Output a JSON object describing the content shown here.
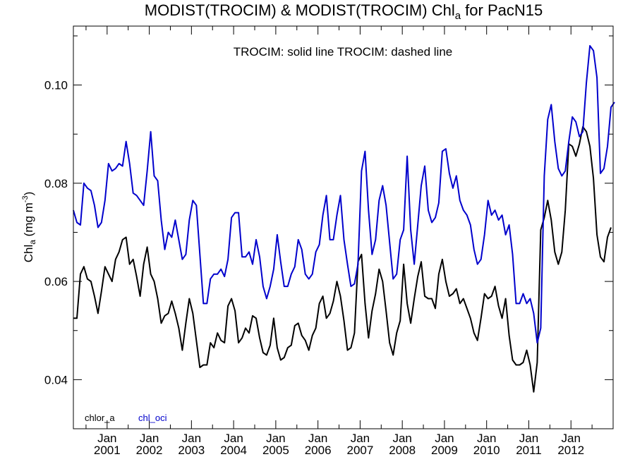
{
  "chart_data": {
    "type": "line",
    "title_prefix": "MODIST(TROCIM) & MODIST(TROCIM)  Chl",
    "title_sub": "a",
    "title_suffix": " for PacN15",
    "annotation": "TROCIM: solid line   TROCIM: dashed line",
    "ylabel_prefix": "Chl",
    "ylabel_sub": "a",
    "ylabel_unit_prefix": " (mg m",
    "ylabel_unit_sup": "-3",
    "ylabel_unit_suffix": ")",
    "ylim": [
      0.03,
      0.112
    ],
    "yticks": [
      0.04,
      0.06,
      0.08,
      0.1
    ],
    "ytick_labels": [
      "0.04",
      "0.06",
      "0.08",
      "0.10"
    ],
    "xlim": [
      2000.2,
      2013.0
    ],
    "xticks": [
      2001.0,
      2002.0,
      2003.0,
      2004.0,
      2005.0,
      2006.0,
      2007.0,
      2008.0,
      2009.0,
      2010.0,
      2011.0,
      2012.0
    ],
    "xtick_month_label": "Jan",
    "xtick_year_labels": [
      "2001",
      "2002",
      "2003",
      "2004",
      "2005",
      "2006",
      "2007",
      "2008",
      "2009",
      "2010",
      "2011",
      "2012"
    ],
    "legend_position": "bottom-left",
    "series": [
      {
        "name": "chlor_a",
        "color": "#000000",
        "x_start": 2000.2,
        "x_step": 0.08333,
        "values": [
          0.0525,
          0.0525,
          0.0615,
          0.063,
          0.0605,
          0.06,
          0.057,
          0.0535,
          0.058,
          0.063,
          0.0615,
          0.06,
          0.0645,
          0.066,
          0.0685,
          0.069,
          0.0635,
          0.0645,
          0.061,
          0.057,
          0.0635,
          0.067,
          0.0615,
          0.06,
          0.0565,
          0.0515,
          0.053,
          0.0535,
          0.056,
          0.0535,
          0.0505,
          0.046,
          0.0515,
          0.0565,
          0.0535,
          0.048,
          0.0425,
          0.043,
          0.043,
          0.0475,
          0.0465,
          0.0495,
          0.048,
          0.0475,
          0.055,
          0.0565,
          0.054,
          0.0475,
          0.0485,
          0.0505,
          0.0495,
          0.053,
          0.0525,
          0.0485,
          0.0455,
          0.045,
          0.047,
          0.0525,
          0.0465,
          0.044,
          0.0445,
          0.0465,
          0.047,
          0.051,
          0.0515,
          0.049,
          0.048,
          0.046,
          0.049,
          0.0505,
          0.0555,
          0.057,
          0.0525,
          0.0535,
          0.056,
          0.06,
          0.057,
          0.052,
          0.046,
          0.0465,
          0.0495,
          0.064,
          0.0655,
          0.0555,
          0.0485,
          0.054,
          0.0575,
          0.0625,
          0.06,
          0.054,
          0.0475,
          0.045,
          0.0495,
          0.052,
          0.0635,
          0.0555,
          0.0515,
          0.0565,
          0.061,
          0.064,
          0.057,
          0.0565,
          0.0565,
          0.0545,
          0.0615,
          0.0645,
          0.06,
          0.057,
          0.0575,
          0.0585,
          0.0555,
          0.0565,
          0.0545,
          0.0525,
          0.0495,
          0.048,
          0.0525,
          0.0575,
          0.0565,
          0.057,
          0.059,
          0.055,
          0.0525,
          0.0565,
          0.049,
          0.044,
          0.043,
          0.043,
          0.0435,
          0.046,
          0.043,
          0.0375,
          0.0435,
          0.0705,
          0.073,
          0.0765,
          0.0725,
          0.066,
          0.0635,
          0.066,
          0.0745,
          0.088,
          0.0875,
          0.0855,
          0.088,
          0.0915,
          0.0905,
          0.0875,
          0.081,
          0.0695,
          0.065,
          0.064,
          0.069,
          0.071
        ]
      },
      {
        "name": "chl_oci",
        "color": "#0000cc",
        "x_start": 2000.2,
        "x_step": 0.08333,
        "values": [
          0.0745,
          0.072,
          0.0715,
          0.08,
          0.079,
          0.0785,
          0.0755,
          0.071,
          0.072,
          0.0765,
          0.084,
          0.0825,
          0.083,
          0.084,
          0.0835,
          0.0885,
          0.084,
          0.078,
          0.0775,
          0.0765,
          0.0755,
          0.0825,
          0.0905,
          0.0815,
          0.0805,
          0.0725,
          0.0665,
          0.07,
          0.069,
          0.0725,
          0.0685,
          0.0645,
          0.0655,
          0.0725,
          0.0765,
          0.0755,
          0.0655,
          0.0555,
          0.0555,
          0.0605,
          0.0615,
          0.0615,
          0.0625,
          0.061,
          0.0645,
          0.073,
          0.074,
          0.074,
          0.065,
          0.065,
          0.066,
          0.0635,
          0.0685,
          0.065,
          0.059,
          0.0565,
          0.059,
          0.0625,
          0.0695,
          0.064,
          0.059,
          0.059,
          0.0615,
          0.063,
          0.0685,
          0.0665,
          0.0615,
          0.0605,
          0.0615,
          0.066,
          0.0675,
          0.0735,
          0.0775,
          0.0685,
          0.0685,
          0.0735,
          0.0775,
          0.0685,
          0.0635,
          0.059,
          0.0595,
          0.0635,
          0.0825,
          0.0865,
          0.0745,
          0.0655,
          0.0685,
          0.0765,
          0.0795,
          0.0755,
          0.068,
          0.0605,
          0.0615,
          0.0685,
          0.0705,
          0.0855,
          0.0705,
          0.0635,
          0.0715,
          0.0795,
          0.0835,
          0.0745,
          0.072,
          0.073,
          0.076,
          0.0865,
          0.087,
          0.082,
          0.079,
          0.0815,
          0.0765,
          0.0745,
          0.0735,
          0.0715,
          0.0665,
          0.0635,
          0.0645,
          0.0695,
          0.0765,
          0.0735,
          0.0745,
          0.0725,
          0.0735,
          0.0695,
          0.0715,
          0.0655,
          0.0555,
          0.0555,
          0.0575,
          0.0555,
          0.0565,
          0.0535,
          0.0475,
          0.0505,
          0.0815,
          0.093,
          0.096,
          0.0885,
          0.083,
          0.0815,
          0.0825,
          0.0885,
          0.0935,
          0.0925,
          0.0895,
          0.0905,
          0.1005,
          0.108,
          0.107,
          0.1015,
          0.082,
          0.083,
          0.0875,
          0.0955,
          0.0965
        ]
      }
    ]
  }
}
